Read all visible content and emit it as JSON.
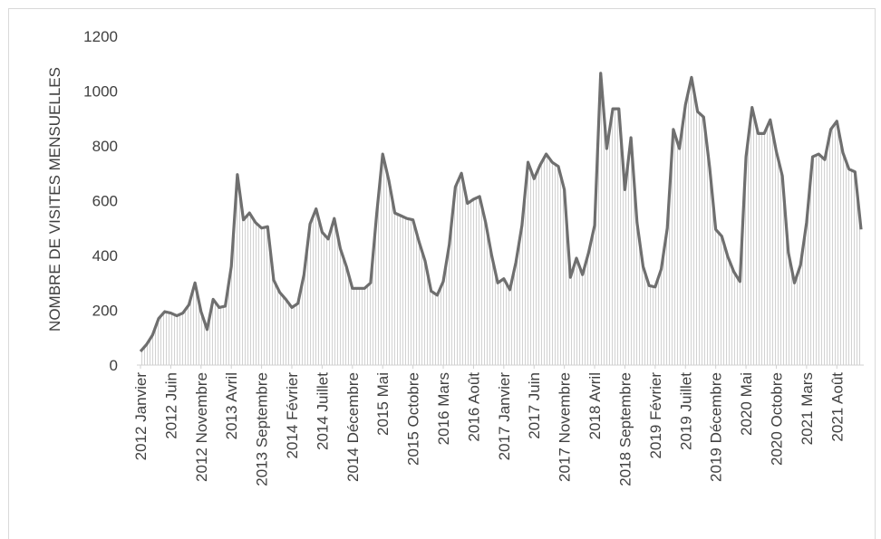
{
  "chart_data": {
    "type": "area",
    "title": "",
    "xlabel": "",
    "ylabel": "NOMBRE DE VISITES MENSUELLES",
    "ylim": [
      0,
      1200
    ],
    "yticks": [
      0,
      200,
      400,
      600,
      800,
      1000,
      1200
    ],
    "grid": false,
    "legend": "none",
    "x_tick_labels": [
      {
        "index": 0,
        "label": "2012 Janvier"
      },
      {
        "index": 5,
        "label": "2012 Juin"
      },
      {
        "index": 10,
        "label": "2012 Novembre"
      },
      {
        "index": 15,
        "label": "2013 Avril"
      },
      {
        "index": 20,
        "label": "2013 Septembre"
      },
      {
        "index": 25,
        "label": "2014 Février"
      },
      {
        "index": 30,
        "label": "2014 Juillet"
      },
      {
        "index": 35,
        "label": "2014 Décembre"
      },
      {
        "index": 40,
        "label": "2015 Mai"
      },
      {
        "index": 45,
        "label": "2015 Octobre"
      },
      {
        "index": 50,
        "label": "2016 Mars"
      },
      {
        "index": 55,
        "label": "2016 Août"
      },
      {
        "index": 60,
        "label": "2017 Janvier"
      },
      {
        "index": 65,
        "label": "2017 Juin"
      },
      {
        "index": 70,
        "label": "2017 Novembre"
      },
      {
        "index": 75,
        "label": "2018 Avril"
      },
      {
        "index": 80,
        "label": "2018 Septembre"
      },
      {
        "index": 85,
        "label": "2019 Février"
      },
      {
        "index": 90,
        "label": "2019 Juillet"
      },
      {
        "index": 95,
        "label": "2019 Décembre"
      },
      {
        "index": 100,
        "label": "2020 Mai"
      },
      {
        "index": 105,
        "label": "2020 Octobre"
      },
      {
        "index": 110,
        "label": "2021 Mars"
      },
      {
        "index": 115,
        "label": "2021 Août"
      }
    ],
    "series": [
      {
        "values": [
          50,
          75,
          110,
          170,
          195,
          190,
          180,
          190,
          220,
          300,
          195,
          130,
          240,
          210,
          215,
          360,
          695,
          530,
          555,
          520,
          500,
          505,
          310,
          265,
          240,
          210,
          225,
          330,
          515,
          570,
          485,
          460,
          535,
          425,
          360,
          280,
          280,
          280,
          300,
          550,
          770,
          675,
          555,
          545,
          535,
          530,
          450,
          380,
          270,
          255,
          305,
          440,
          650,
          700,
          590,
          605,
          615,
          520,
          400,
          300,
          315,
          275,
          375,
          510,
          740,
          680,
          730,
          770,
          740,
          725,
          640,
          320,
          390,
          330,
          410,
          510,
          1065,
          790,
          935,
          935,
          640,
          830,
          520,
          360,
          290,
          285,
          350,
          500,
          860,
          790,
          950,
          1050,
          925,
          905,
          720,
          495,
          470,
          395,
          340,
          305,
          760,
          940,
          845,
          845,
          895,
          780,
          690,
          410,
          300,
          365,
          520,
          760,
          770,
          750,
          860,
          890,
          775,
          715,
          705,
          495
        ]
      }
    ]
  }
}
